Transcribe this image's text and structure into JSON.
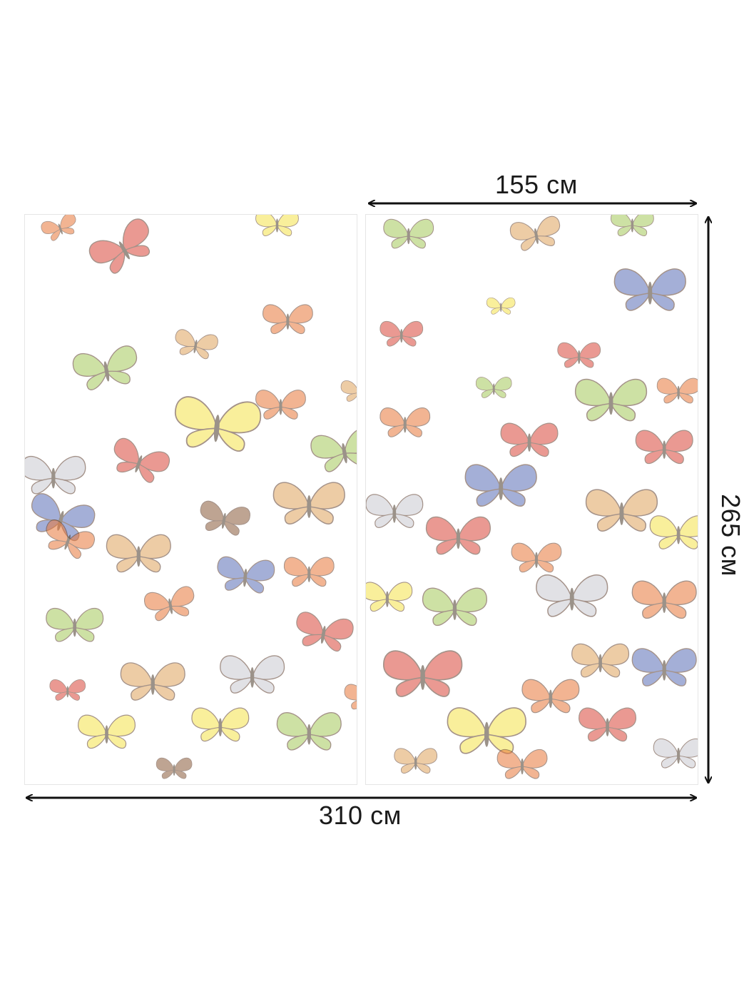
{
  "dimensions": {
    "panel_width_label": "155 см",
    "total_width_label": "310 см",
    "height_label": "265 см"
  },
  "colors": {
    "background": "#ffffff",
    "arrow": "#111111",
    "panel_border": "#e6e6e6"
  },
  "panels": {
    "count": 2,
    "pattern": "butterflies"
  },
  "butterfly_palette": [
    "#e8783a",
    "#f5e34a",
    "#5a6fb8",
    "#d9463a",
    "#a6c95a",
    "#c9c9d0",
    "#e0a35c",
    "#8a5a3a"
  ]
}
